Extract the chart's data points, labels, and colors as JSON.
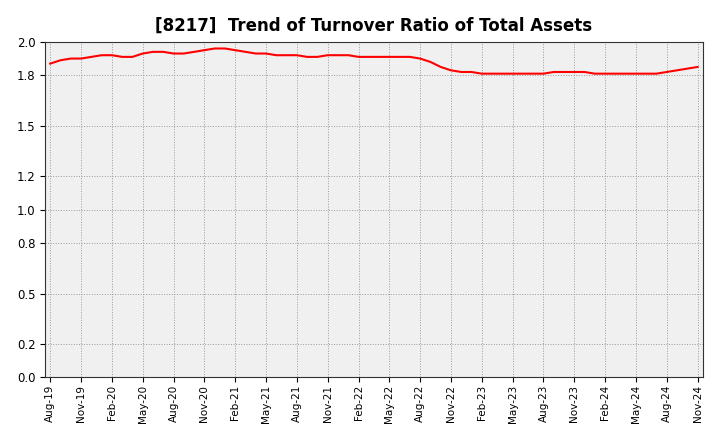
{
  "title": "[8217]  Trend of Turnover Ratio of Total Assets",
  "line_color": "#FF0000",
  "line_width": 1.5,
  "background_color": "#FFFFFF",
  "plot_bg_color": "#F0F0F0",
  "grid_color": "#999999",
  "ylim": [
    0.0,
    2.0
  ],
  "yticks": [
    0.0,
    0.2,
    0.5,
    0.8,
    1.0,
    1.2,
    1.5,
    1.8,
    2.0
  ],
  "values": [
    1.87,
    1.89,
    1.9,
    1.9,
    1.91,
    1.92,
    1.92,
    1.91,
    1.91,
    1.93,
    1.94,
    1.94,
    1.93,
    1.93,
    1.94,
    1.95,
    1.96,
    1.96,
    1.95,
    1.94,
    1.93,
    1.93,
    1.92,
    1.92,
    1.92,
    1.91,
    1.91,
    1.92,
    1.92,
    1.92,
    1.91,
    1.91,
    1.91,
    1.91,
    1.91,
    1.91,
    1.9,
    1.88,
    1.85,
    1.83,
    1.82,
    1.82,
    1.81,
    1.81,
    1.81,
    1.81,
    1.81,
    1.81,
    1.81,
    1.82,
    1.82,
    1.82,
    1.82,
    1.81,
    1.81,
    1.81,
    1.81,
    1.81,
    1.81,
    1.81,
    1.82,
    1.83,
    1.84,
    1.85
  ],
  "xtick_labels": [
    "Aug-19",
    "Nov-19",
    "Feb-20",
    "May-20",
    "Aug-20",
    "Nov-20",
    "Feb-21",
    "May-21",
    "Aug-21",
    "Nov-21",
    "Feb-22",
    "May-22",
    "Aug-22",
    "Nov-22",
    "Feb-23",
    "May-23",
    "Aug-23",
    "Nov-23",
    "Feb-24",
    "May-24",
    "Aug-24",
    "Nov-24"
  ],
  "xtick_positions": [
    0,
    3,
    6,
    9,
    12,
    15,
    18,
    21,
    24,
    27,
    30,
    33,
    36,
    39,
    42,
    45,
    48,
    51,
    54,
    57,
    60,
    63
  ]
}
